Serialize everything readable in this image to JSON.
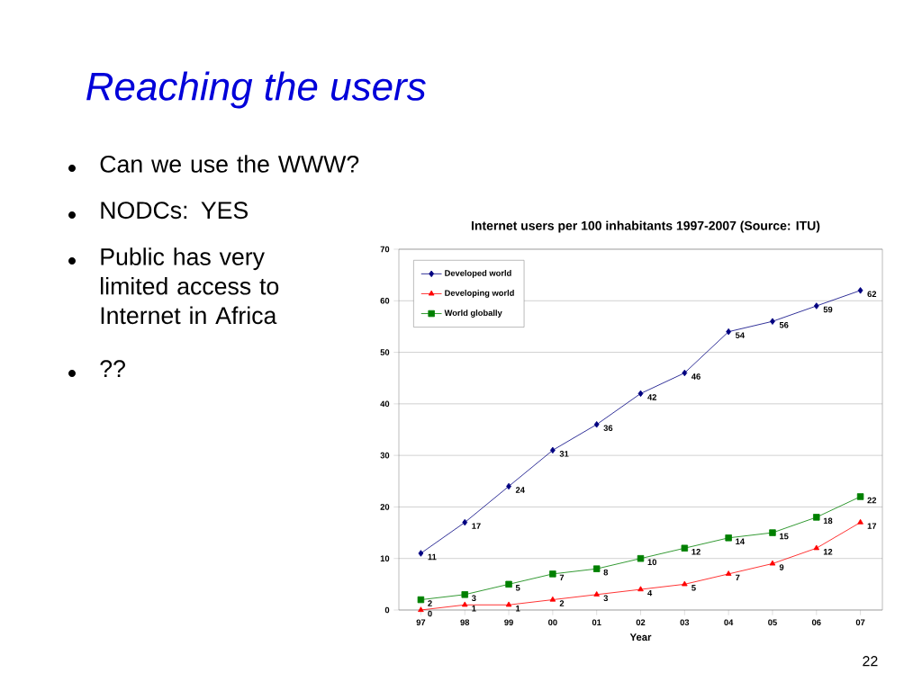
{
  "chart_data": {
    "type": "line",
    "title": "Reaching the users",
    "subtitle": "Internet users per 100 inhabitants 1997-2007 (Source: ITU)",
    "annotations": [
      "Can we use the WWW?",
      "NODCs: YES",
      "Public has very limited access to Internet in Africa",
      "??",
      "22"
    ],
    "xlabel": "Year",
    "categories": [
      "97",
      "98",
      "99",
      "00",
      "01",
      "02",
      "03",
      "04",
      "05",
      "06",
      "07"
    ],
    "series": [
      {
        "name": "Developed world",
        "color": "#000080",
        "marker": "diamond",
        "values": [
          11,
          17,
          24,
          31,
          36,
          42,
          46,
          54,
          56,
          59,
          62
        ]
      },
      {
        "name": "Developing world",
        "color": "#ff0000",
        "marker": "triangle",
        "values": [
          0,
          1,
          1,
          2,
          3,
          4,
          5,
          7,
          9,
          12,
          17
        ]
      },
      {
        "name": "World globally",
        "color": "#008000",
        "marker": "square",
        "values": [
          2,
          3,
          5,
          7,
          8,
          10,
          12,
          14,
          15,
          18,
          22
        ]
      }
    ],
    "ylim": [
      0,
      70
    ],
    "yticks": [
      0,
      10,
      20,
      30,
      40,
      50,
      60,
      70
    ],
    "grid": "y",
    "legend": "top left",
    "data_labels": true,
    "line_style": "solid"
  }
}
